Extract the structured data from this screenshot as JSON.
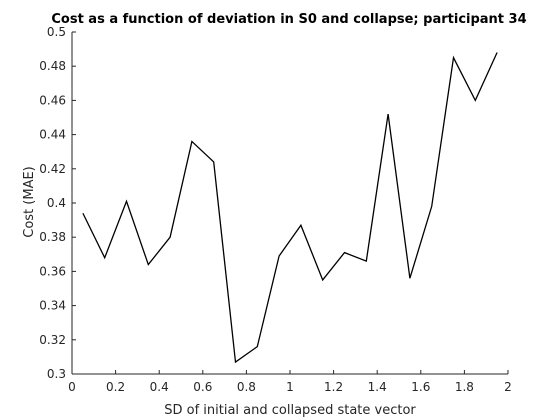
{
  "chart_data": {
    "type": "line",
    "title": "Cost as a function of deviation in S0 and collapse; participant 34",
    "xlabel": "SD of initial and collapsed state vector",
    "ylabel": "Cost (MAE)",
    "xlim": [
      0,
      2
    ],
    "ylim": [
      0.3,
      0.5
    ],
    "xticks": [
      0,
      0.2,
      0.4,
      0.6,
      0.8,
      1,
      1.2,
      1.4,
      1.6,
      1.8,
      2
    ],
    "xtick_labels": [
      "0",
      "0.2",
      "0.4",
      "0.6",
      "0.8",
      "1",
      "1.2",
      "1.4",
      "1.6",
      "1.8",
      "2"
    ],
    "yticks": [
      0.3,
      0.32,
      0.34,
      0.36,
      0.38,
      0.4,
      0.42,
      0.44,
      0.46,
      0.48,
      0.5
    ],
    "ytick_labels": [
      "0.3",
      "0.32",
      "0.34",
      "0.36",
      "0.38",
      "0.4",
      "0.42",
      "0.44",
      "0.46",
      "0.48",
      "0.5"
    ],
    "grid": false,
    "box": "open-top-right",
    "series": [
      {
        "color": "#000000",
        "x": [
          0.05,
          0.15,
          0.25,
          0.35,
          0.45,
          0.55,
          0.65,
          0.75,
          0.85,
          0.95,
          1.05,
          1.15,
          1.25,
          1.35,
          1.45,
          1.55,
          1.65,
          1.75,
          1.85,
          1.95
        ],
        "y": [
          0.394,
          0.368,
          0.401,
          0.364,
          0.38,
          0.436,
          0.424,
          0.307,
          0.316,
          0.369,
          0.387,
          0.355,
          0.371,
          0.366,
          0.452,
          0.356,
          0.398,
          0.485,
          0.46,
          0.488
        ]
      }
    ]
  }
}
